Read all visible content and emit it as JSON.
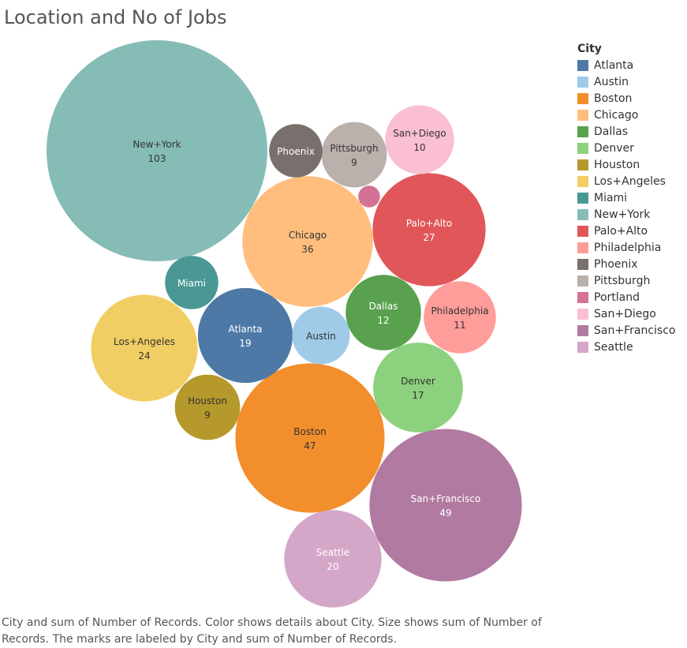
{
  "title": "Location and No of Jobs",
  "caption": "City and sum of Number of Records.  Color shows details about City.  Size shows sum of Number of Records.  The marks are labeled by City and sum of Number of Records.",
  "legend": {
    "title": "City",
    "items": [
      {
        "label": "Atlanta",
        "color": "#4e79a7"
      },
      {
        "label": "Austin",
        "color": "#a0cbe8"
      },
      {
        "label": "Boston",
        "color": "#f28e2b"
      },
      {
        "label": "Chicago",
        "color": "#ffbe7d"
      },
      {
        "label": "Dallas",
        "color": "#59a14f"
      },
      {
        "label": "Denver",
        "color": "#8cd17d"
      },
      {
        "label": "Houston",
        "color": "#b6992d"
      },
      {
        "label": "Los+Angeles",
        "color": "#f1ce63"
      },
      {
        "label": "Miami",
        "color": "#499894"
      },
      {
        "label": "New+York",
        "color": "#86bcb6"
      },
      {
        "label": "Palo+Alto",
        "color": "#e15759"
      },
      {
        "label": "Philadelphia",
        "color": "#ff9d9a"
      },
      {
        "label": "Phoenix",
        "color": "#79706e"
      },
      {
        "label": "Pittsburgh",
        "color": "#bab0ac"
      },
      {
        "label": "Portland",
        "color": "#d37295"
      },
      {
        "label": "San+Diego",
        "color": "#fabfd2"
      },
      {
        "label": "San+Francisco",
        "color": "#b07aa1"
      },
      {
        "label": "Seattle",
        "color": "#d4a6c8"
      }
    ]
  },
  "chart_data": {
    "type": "bubble",
    "title": "Location and No of Jobs",
    "series": [
      {
        "city": "New+York",
        "value": 103,
        "show_value": true
      },
      {
        "city": "San+Francisco",
        "value": 49,
        "show_value": true
      },
      {
        "city": "Boston",
        "value": 47,
        "show_value": true
      },
      {
        "city": "Chicago",
        "value": 36,
        "show_value": true
      },
      {
        "city": "Palo+Alto",
        "value": 27,
        "show_value": true
      },
      {
        "city": "Los+Angeles",
        "value": 24,
        "show_value": true
      },
      {
        "city": "Seattle",
        "value": 20,
        "show_value": true
      },
      {
        "city": "Atlanta",
        "value": 19,
        "show_value": true
      },
      {
        "city": "Denver",
        "value": 17,
        "show_value": true
      },
      {
        "city": "Dallas",
        "value": 12,
        "show_value": true
      },
      {
        "city": "Philadelphia",
        "value": 11,
        "show_value": true
      },
      {
        "city": "San+Diego",
        "value": 10,
        "show_value": true
      },
      {
        "city": "Pittsburgh",
        "value": 9,
        "show_value": true
      },
      {
        "city": "Houston",
        "value": 9,
        "show_value": true
      },
      {
        "city": "Austin",
        "value": 7,
        "show_value": false
      },
      {
        "city": "Phoenix",
        "value": 6,
        "show_value": false
      },
      {
        "city": "Miami",
        "value": 6,
        "show_value": false
      },
      {
        "city": "Portland",
        "value": 1,
        "show_value": false
      }
    ]
  }
}
